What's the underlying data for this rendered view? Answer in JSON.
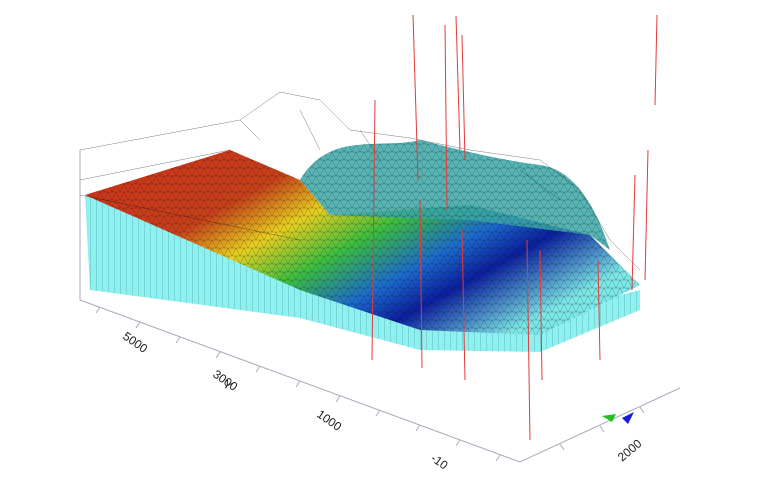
{
  "axes": {
    "y_axis": {
      "label": "Y",
      "tick_labels": [
        "5000",
        "3000",
        "1000",
        "-10"
      ]
    },
    "x_axis": {
      "tick_labels": [
        "2000"
      ]
    }
  }
}
